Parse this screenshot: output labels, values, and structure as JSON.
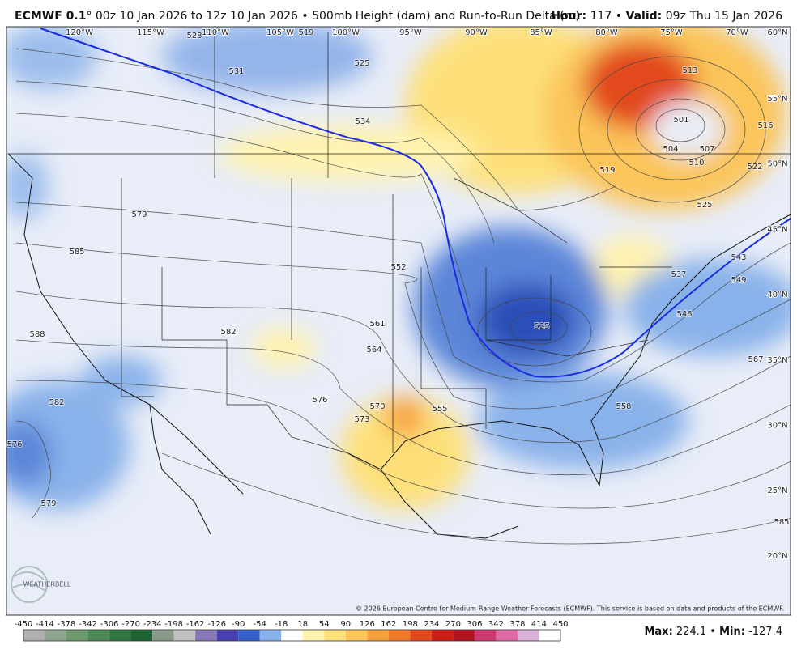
{
  "header": {
    "model": "ECMWF 0.1",
    "title": "° 00z 10 Jan 2026 to 12z 10 Jan 2026 • 500mb Height (dam) and Run-to-Run Delta (m)",
    "hour_label": "Hour:",
    "hour": 117,
    "separator": "•",
    "valid_label": "Valid:",
    "valid": "09z Thu 15 Jan 2026"
  },
  "map": {
    "longitude_labels": [
      "120°W",
      "115°W",
      "110°W",
      "105°W",
      "100°W",
      "95°W",
      "90°W",
      "85°W",
      "80°W",
      "75°W",
      "70°W",
      "60°N"
    ],
    "latitude_labels": [
      "55°N",
      "50°N",
      "45°N",
      "40°N",
      "35°N",
      "30°N",
      "25°N",
      "20°N"
    ],
    "contour_labels": [
      531,
      525,
      534,
      519,
      528,
      513,
      501,
      504,
      507,
      510,
      516,
      519,
      522,
      525,
      579,
      585,
      588,
      582,
      576,
      579,
      582,
      552,
      561,
      564,
      570,
      573,
      576,
      555,
      525,
      546,
      543,
      549,
      537,
      558,
      567,
      585
    ],
    "logo": "WEATHERBELL",
    "copyright": "© 2026 European Centre for Medium-Range Weather Forecasts (ECMWF). This service is based on data and products of the ECMWF."
  },
  "colorbar": {
    "ticks": [
      -450,
      -414,
      -378,
      -342,
      -306,
      -270,
      -234,
      -198,
      -162,
      -126,
      -90,
      -54,
      -18,
      18,
      54,
      90,
      126,
      162,
      198,
      234,
      270,
      306,
      342,
      378,
      414,
      450
    ],
    "colors": [
      "#b0b0b0",
      "#8fa58f",
      "#6e9a6e",
      "#4e8a55",
      "#2f7640",
      "#1e6434",
      "#8a9a8a",
      "#c0c0c0",
      "#8878b8",
      "#4a3fb0",
      "#3560c8",
      "#8ab2ea",
      "#ffffff",
      "#fff3b0",
      "#fde07a",
      "#fbc55a",
      "#f7a03e",
      "#f07a2a",
      "#e24a1e",
      "#cc1e18",
      "#b01420",
      "#cc3a70",
      "#de6aa6",
      "#d8b0d8"
    ]
  },
  "stats": {
    "max_label": "Max:",
    "max": 224.1,
    "min_label": "Min:",
    "min": -127.4
  }
}
